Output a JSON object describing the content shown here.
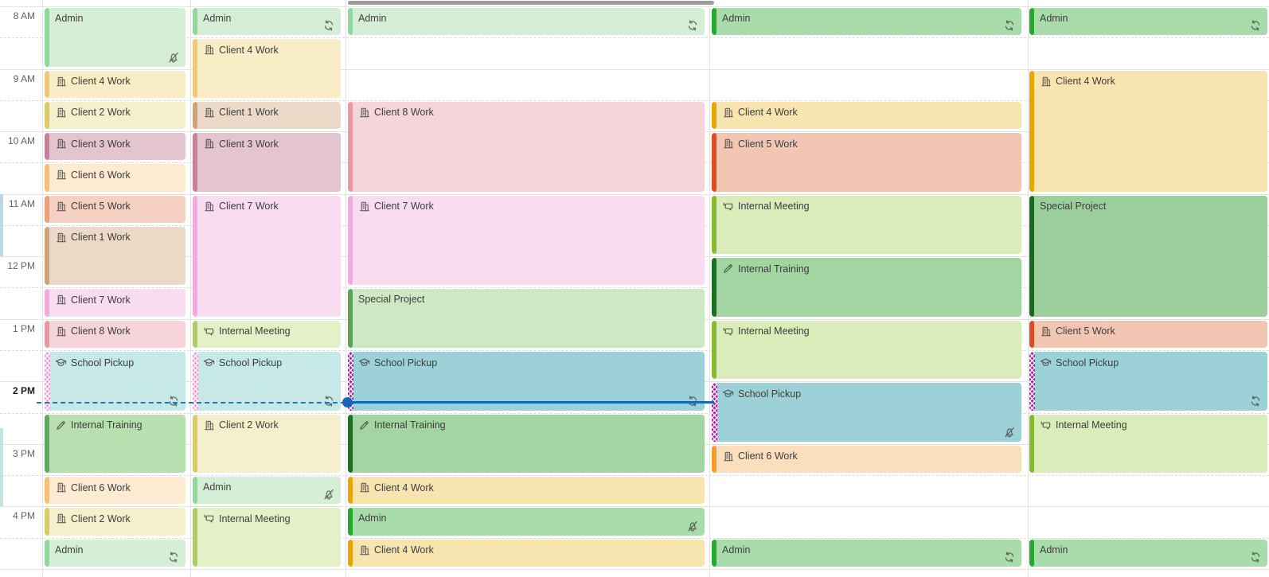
{
  "calendar": {
    "view": "multi-day-schedule",
    "time_gutter": {
      "labels": [
        {
          "label": "8 AM",
          "hour": 8,
          "bold": false
        },
        {
          "label": "9 AM",
          "hour": 9,
          "bold": false
        },
        {
          "label": "10 AM",
          "hour": 10,
          "bold": false
        },
        {
          "label": "11 AM",
          "hour": 11,
          "bold": false
        },
        {
          "label": "12 PM",
          "hour": 12,
          "bold": false
        },
        {
          "label": "1 PM",
          "hour": 13,
          "bold": false
        },
        {
          "label": "2 PM",
          "hour": 14,
          "bold": true
        },
        {
          "label": "3 PM",
          "hour": 15,
          "bold": false
        },
        {
          "label": "4 PM",
          "hour": 16,
          "bold": false
        }
      ]
    },
    "current_time": {
      "time": "14:20",
      "color": "#1468bb",
      "dashed_color": "#2176c7"
    },
    "palette": {
      "admin-faded": {
        "bg": "#d5efd7",
        "bar": "#90d89b"
      },
      "admin": {
        "bg": "#a9dcab",
        "bar": "#27a82e"
      },
      "client1-faded": {
        "bg": "#ecd9c7",
        "bar": "#cfa376"
      },
      "client2-faded": {
        "bg": "#f4f0cc",
        "bar": "#dbca6a"
      },
      "client3-faded": {
        "bg": "#e4c4ce",
        "bar": "#c9819b"
      },
      "client4-faded": {
        "bg": "#f9edc5",
        "bar": "#eec978"
      },
      "client4": {
        "bg": "#f8e4ae",
        "bar": "#e7a602"
      },
      "client5-faded": {
        "bg": "#f6d0c1",
        "bar": "#ec9e76"
      },
      "client5": {
        "bg": "#f3c6b4",
        "bar": "#de4d20"
      },
      "client6-faded": {
        "bg": "#fcead1",
        "bar": "#f8bf73"
      },
      "client6": {
        "bg": "#fbdfbc",
        "bar": "#f59d2a"
      },
      "client7-faded": {
        "bg": "#fadcf1",
        "bar": "#f3aade"
      },
      "client8-faded": {
        "bg": "#f5d5da",
        "bar": "#e897a3"
      },
      "school-faded": {
        "bg": "#c6e8e7",
        "bar": "#ee9bd9",
        "pattern": true
      },
      "school": {
        "bg": "#9cd2d7",
        "bar": "#b11d9e",
        "pattern": true
      },
      "training-faded": {
        "bg": "#b7dfaf",
        "bar": "#61a75f"
      },
      "training": {
        "bg": "#a2d5a1",
        "bar": "#1a7120"
      },
      "meeting-faded": {
        "bg": "#e4f0c6",
        "bar": "#adcc68"
      },
      "meeting": {
        "bg": "#d9ecba",
        "bar": "#88ba2e"
      },
      "special-faded": {
        "bg": "#cde8c3",
        "bar": "#5aa35a"
      },
      "special": {
        "bg": "#9bd09d",
        "bar": "#17691c"
      }
    },
    "columns": [
      {
        "events": [
          {
            "title": "Admin",
            "start": "8:00",
            "end": "9:00",
            "style": "admin-faded",
            "icon": null,
            "badge": "bell-off"
          },
          {
            "title": "Client 4 Work",
            "start": "9:00",
            "end": "9:30",
            "style": "client4-faded",
            "icon": "building",
            "badge": null
          },
          {
            "title": "Client 2 Work",
            "start": "9:30",
            "end": "10:00",
            "style": "client2-faded",
            "icon": "building",
            "badge": null
          },
          {
            "title": "Client 3 Work",
            "start": "10:00",
            "end": "10:30",
            "style": "client3-faded",
            "icon": "building",
            "badge": null
          },
          {
            "title": "Client 6 Work",
            "start": "10:30",
            "end": "11:00",
            "style": "client6-faded",
            "icon": "building",
            "badge": null
          },
          {
            "title": "Client 5 Work",
            "start": "11:00",
            "end": "11:30",
            "style": "client5-faded",
            "icon": "building",
            "badge": null
          },
          {
            "title": "Client 1 Work",
            "start": "11:30",
            "end": "12:30",
            "style": "client1-faded",
            "icon": "building",
            "badge": null
          },
          {
            "title": "Client 7 Work",
            "start": "12:30",
            "end": "13:00",
            "style": "client7-faded",
            "icon": "building",
            "badge": null
          },
          {
            "title": "Client 8 Work",
            "start": "13:00",
            "end": "13:30",
            "style": "client8-faded",
            "icon": "building",
            "badge": null
          },
          {
            "title": "School Pickup",
            "start": "13:30",
            "end": "14:30",
            "style": "school-faded",
            "icon": "cap",
            "badge": "repeat"
          },
          {
            "title": "Internal Training",
            "start": "14:30",
            "end": "15:30",
            "style": "training-faded",
            "icon": "pencil",
            "badge": null
          },
          {
            "title": "Client 6 Work",
            "start": "15:30",
            "end": "16:00",
            "style": "client6-faded",
            "icon": "building",
            "badge": null
          },
          {
            "title": "Client 2 Work",
            "start": "16:00",
            "end": "16:30",
            "style": "client2-faded",
            "icon": "building",
            "badge": null
          },
          {
            "title": "Admin",
            "start": "16:30",
            "end": "17:00",
            "style": "admin-faded",
            "icon": null,
            "badge": "repeat"
          }
        ]
      },
      {
        "events": [
          {
            "title": "Admin",
            "start": "8:00",
            "end": "8:30",
            "style": "admin-faded",
            "icon": null,
            "badge": "repeat"
          },
          {
            "title": "Client 4 Work",
            "start": "8:30",
            "end": "9:30",
            "style": "client4-faded",
            "icon": "building",
            "badge": null
          },
          {
            "title": "Client 1 Work",
            "start": "9:30",
            "end": "10:00",
            "style": "client1-faded",
            "icon": "building",
            "badge": null
          },
          {
            "title": "Client 3 Work",
            "start": "10:00",
            "end": "11:00",
            "style": "client3-faded",
            "icon": "building",
            "badge": null
          },
          {
            "title": "Client 7 Work",
            "start": "11:00",
            "end": "13:00",
            "style": "client7-faded",
            "icon": "building",
            "badge": null
          },
          {
            "title": "Internal Meeting",
            "start": "13:00",
            "end": "13:30",
            "style": "meeting-faded",
            "icon": "chat",
            "badge": null
          },
          {
            "title": "School Pickup",
            "start": "13:30",
            "end": "14:30",
            "style": "school-faded",
            "icon": "cap",
            "badge": "repeat"
          },
          {
            "title": "Client 2 Work",
            "start": "14:30",
            "end": "15:30",
            "style": "client2-faded",
            "icon": "building",
            "badge": null
          },
          {
            "title": "Admin",
            "start": "15:30",
            "end": "16:00",
            "style": "admin-faded",
            "icon": null,
            "badge": "bell-off"
          },
          {
            "title": "Internal Meeting",
            "start": "16:00",
            "end": "17:00",
            "style": "meeting-faded",
            "icon": "chat",
            "badge": null
          }
        ]
      },
      {
        "events": [
          {
            "title": "Admin",
            "start": "8:00",
            "end": "8:30",
            "style": "admin-faded",
            "icon": null,
            "badge": "repeat"
          },
          {
            "title": "Client 8 Work",
            "start": "9:30",
            "end": "11:00",
            "style": "client8-faded",
            "icon": "building",
            "badge": null
          },
          {
            "title": "Client 7 Work",
            "start": "11:00",
            "end": "12:30",
            "style": "client7-faded",
            "icon": "building",
            "badge": null
          },
          {
            "title": "Special Project",
            "start": "12:30",
            "end": "13:30",
            "style": "special-faded",
            "icon": null,
            "badge": null
          },
          {
            "title": "School Pickup",
            "start": "13:30",
            "end": "14:30",
            "style": "school",
            "icon": "cap",
            "badge": "repeat"
          },
          {
            "title": "Internal Training",
            "start": "14:30",
            "end": "15:30",
            "style": "training",
            "icon": "pencil",
            "badge": null
          },
          {
            "title": "Client 4 Work",
            "start": "15:30",
            "end": "16:00",
            "style": "client4",
            "icon": "building",
            "badge": null
          },
          {
            "title": "Admin",
            "start": "16:00",
            "end": "16:30",
            "style": "admin",
            "icon": null,
            "badge": "bell-off"
          },
          {
            "title": "Client 4 Work",
            "start": "16:30",
            "end": "17:00",
            "style": "client4",
            "icon": "building",
            "badge": null
          }
        ]
      },
      {
        "events": [
          {
            "title": "Admin",
            "start": "8:00",
            "end": "8:30",
            "style": "admin",
            "icon": null,
            "badge": "repeat"
          },
          {
            "title": "Client 4 Work",
            "start": "9:30",
            "end": "10:00",
            "style": "client4",
            "icon": "building",
            "badge": null
          },
          {
            "title": "Client 5 Work",
            "start": "10:00",
            "end": "11:00",
            "style": "client5",
            "icon": "building",
            "badge": null
          },
          {
            "title": "Internal Meeting",
            "start": "11:00",
            "end": "12:00",
            "style": "meeting",
            "icon": "chat",
            "badge": null
          },
          {
            "title": "Internal Training",
            "start": "12:00",
            "end": "13:00",
            "style": "training",
            "icon": "pencil",
            "badge": null
          },
          {
            "title": "Internal Meeting",
            "start": "13:00",
            "end": "14:00",
            "style": "meeting",
            "icon": "chat",
            "badge": null
          },
          {
            "title": "School Pickup",
            "start": "14:00",
            "end": "15:00",
            "style": "school",
            "icon": "cap",
            "badge": "bell-off"
          },
          {
            "title": "Client 6 Work",
            "start": "15:00",
            "end": "15:30",
            "style": "client6",
            "icon": "building",
            "badge": null
          },
          {
            "title": "Admin",
            "start": "16:30",
            "end": "17:00",
            "style": "admin",
            "icon": null,
            "badge": "repeat"
          }
        ]
      },
      {
        "events": [
          {
            "title": "Admin",
            "start": "8:00",
            "end": "8:30",
            "style": "admin",
            "icon": null,
            "badge": "repeat"
          },
          {
            "title": "Client 4 Work",
            "start": "9:00",
            "end": "11:00",
            "style": "client4",
            "icon": "building",
            "badge": null
          },
          {
            "title": "Special Project",
            "start": "11:00",
            "end": "13:00",
            "style": "special",
            "icon": null,
            "badge": null
          },
          {
            "title": "Client 5 Work",
            "start": "13:00",
            "end": "13:30",
            "style": "client5",
            "icon": "building",
            "badge": null
          },
          {
            "title": "School Pickup",
            "start": "13:30",
            "end": "14:30",
            "style": "school",
            "icon": "cap",
            "badge": "repeat"
          },
          {
            "title": "Internal Meeting",
            "start": "14:30",
            "end": "15:30",
            "style": "meeting",
            "icon": "chat",
            "badge": null
          },
          {
            "title": "Admin",
            "start": "16:30",
            "end": "17:00",
            "style": "admin",
            "icon": null,
            "badge": "repeat"
          }
        ]
      }
    ],
    "clipped_slivers": [
      {
        "start": "11:00",
        "end": "12:00",
        "color": "#b8dae9"
      },
      {
        "start": "14:45",
        "end": "16:00",
        "color": "#c2e4e3"
      }
    ]
  }
}
